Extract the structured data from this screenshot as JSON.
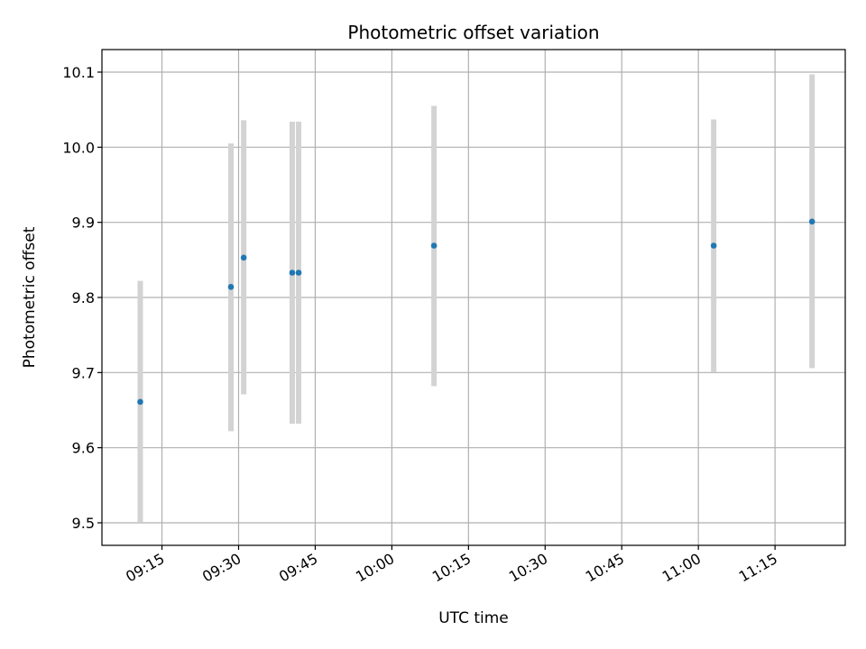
{
  "chart_data": {
    "type": "scatter",
    "title": "Photometric offset variation",
    "xlabel": "UTC time",
    "ylabel": "Photometric offset",
    "x_tick_labels": [
      "09:15",
      "09:30",
      "09:45",
      "10:00",
      "10:15",
      "10:30",
      "10:45",
      "11:00",
      "11:15"
    ],
    "y_ticks": [
      9.5,
      9.6,
      9.7,
      9.8,
      9.9,
      10.0,
      10.1
    ],
    "y_tick_labels": [
      "9.5",
      "9.6",
      "9.7",
      "9.8",
      "9.9",
      "10.0",
      "10.1"
    ],
    "xlim": [
      "09:03:15",
      "11:28:45"
    ],
    "ylim": [
      9.47,
      10.13
    ],
    "grid": true,
    "point_color": "#1f77b4",
    "errorbar_color": "#d3d3d3",
    "series": [
      {
        "points": [
          {
            "time": "09:10:45",
            "y": 9.661,
            "err_low": 9.501,
            "err_high": 9.822
          },
          {
            "time": "09:28:30",
            "y": 9.814,
            "err_low": 9.622,
            "err_high": 10.005
          },
          {
            "time": "09:31:00",
            "y": 9.853,
            "err_low": 9.671,
            "err_high": 10.036
          },
          {
            "time": "09:40:30",
            "y": 9.833,
            "err_low": 9.632,
            "err_high": 10.034
          },
          {
            "time": "09:41:45",
            "y": 9.833,
            "err_low": 9.632,
            "err_high": 10.034
          },
          {
            "time": "10:08:15",
            "y": 9.869,
            "err_low": 9.682,
            "err_high": 10.055
          },
          {
            "time": "11:03:00",
            "y": 9.869,
            "err_low": 9.701,
            "err_high": 10.037
          },
          {
            "time": "11:22:15",
            "y": 9.901,
            "err_low": 9.706,
            "err_high": 10.097
          }
        ]
      }
    ]
  }
}
